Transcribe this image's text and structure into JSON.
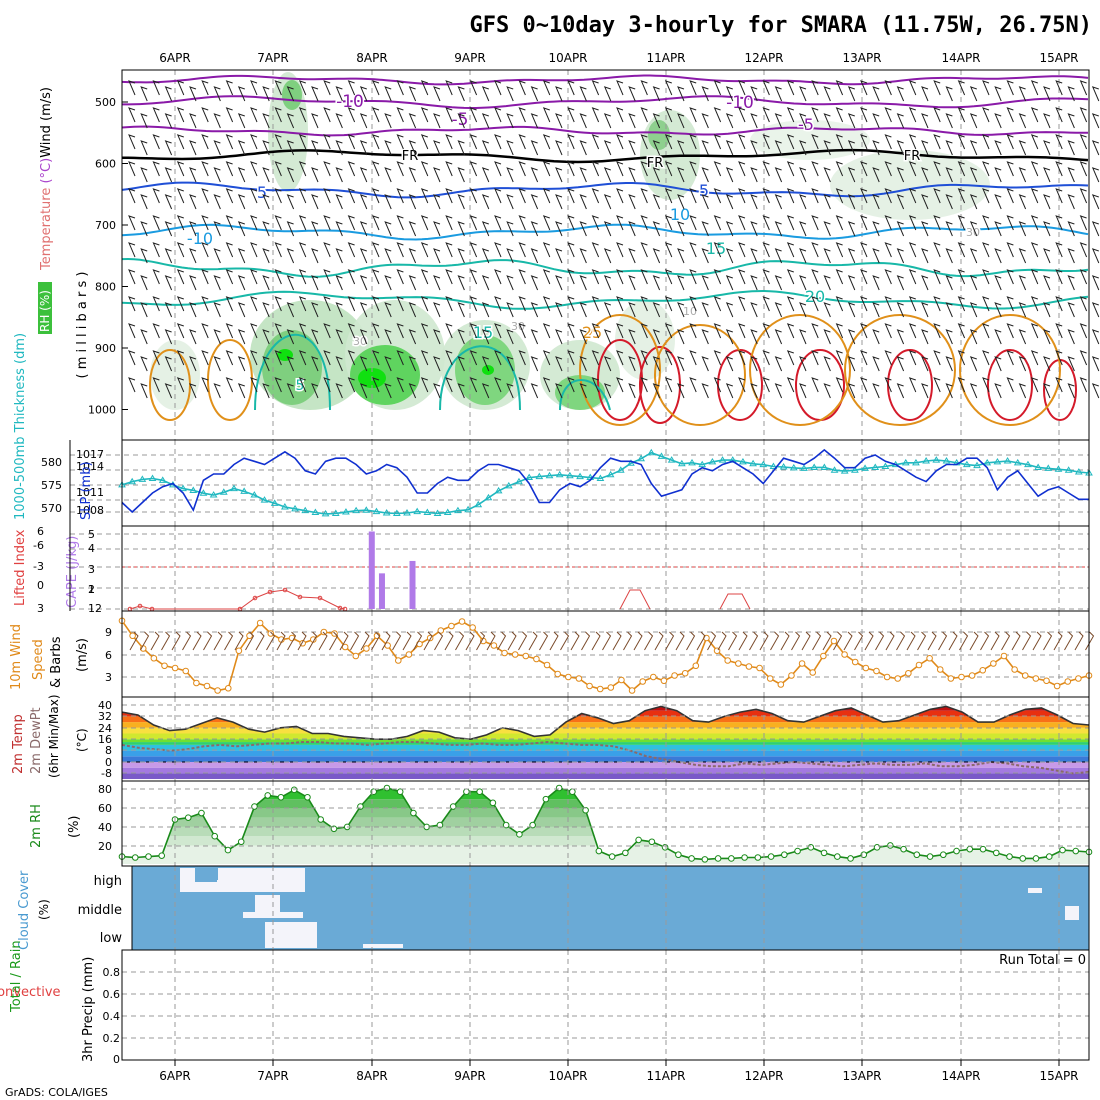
{
  "title": "GFS 0~10day 3-hourly for SMARA (11.75W, 26.75N)",
  "credit": "GrADS: COLA/IGES",
  "dates": [
    "6APR",
    "7APR",
    "8APR",
    "9APR",
    "10APR",
    "11APR",
    "12APR",
    "13APR",
    "14APR",
    "15APR"
  ],
  "panels": {
    "sounding": {
      "ylabel_wind": "Wind (m/s)",
      "ylabel_temp": "Temperature (°C)",
      "ylabel_rh": "RH (%)",
      "ylabel_units": "( m i l l i b a r s )",
      "pressure_levels": [
        500,
        600,
        700,
        800,
        900,
        1000
      ],
      "isotherm_labels": [
        "-10",
        "-5",
        "-10",
        "-5",
        "FR",
        "FR",
        "FR",
        "5",
        "5",
        "-10",
        "10",
        "15",
        "20",
        "25",
        "15",
        "30",
        "30",
        "10",
        "30",
        "5"
      ],
      "colors": {
        "purple": "#8a1aa8",
        "black": "#000000",
        "blue": "#1f4fd6",
        "lightblue": "#1a9be0",
        "teal": "#18b8a8",
        "orange": "#e0901a",
        "red": "#d41a2a",
        "green": "#2ec42e"
      }
    },
    "slp": {
      "ylabel_left": "1000-500mb Thickness (dm)",
      "ylabel_right": "SLP (mb)",
      "left_ticks": [
        "580",
        "575",
        "570"
      ],
      "right_ticks": [
        "1017",
        "1014",
        "1011",
        "1008"
      ],
      "series": [
        {
          "name": "SLP (mb)",
          "color": "#1030d0",
          "values": [
            1009.5,
            1008.0,
            1009.5,
            1011.0,
            1012.0,
            1012.5,
            1011.0,
            1008.3,
            1013.0,
            1014.0,
            1014.0,
            1015.5,
            1016.5,
            1016.0,
            1015.5,
            1016.5,
            1017.5,
            1016.5,
            1014.5,
            1014.0,
            1016.0,
            1016.5,
            1016.5,
            1015.5,
            1014.0,
            1014.5,
            1015.5,
            1015.0,
            1013.5,
            1011.0,
            1011.0,
            1012.5,
            1013.5,
            1013.0,
            1013.0,
            1014.5,
            1015.5,
            1015.5,
            1015.0,
            1014.5,
            1012.5,
            1009.5,
            1009.5,
            1011.5,
            1012.5,
            1012.0,
            1013.0,
            1015.0,
            1016.5,
            1016.0,
            1016.0,
            1015.5,
            1012.5,
            1010.5,
            1011.0,
            1011.5,
            1014.0,
            1015.0,
            1014.5,
            1015.5,
            1016.0,
            1015.0,
            1014.0,
            1012.5,
            1014.5,
            1016.5,
            1016.0,
            1015.5,
            1016.5,
            1017.8,
            1016.5,
            1015.0,
            1015.0,
            1016.5,
            1017.0,
            1016.0,
            1015.5,
            1014.5,
            1013.5,
            1012.8,
            1014.5,
            1015.5,
            1015.5,
            1016.5,
            1016.5,
            1015.0,
            1011.5,
            1013.5,
            1014.5,
            1012.5,
            1010.5,
            1011.5,
            1012.0,
            1011.0,
            1010.0,
            1010.0
          ]
        },
        {
          "name": "Thickness (dm)",
          "color": "#20b8c0",
          "values": [
            574.8,
            575.5,
            576.0,
            576.2,
            575.8,
            574.8,
            574.0,
            573.6,
            573.0,
            572.6,
            573.2,
            574.0,
            573.4,
            572.6,
            571.5,
            570.8,
            570.0,
            569.6,
            569.2,
            568.8,
            568.5,
            568.6,
            568.9,
            569.2,
            569.3,
            569.0,
            568.7,
            568.6,
            568.7,
            569.0,
            568.8,
            568.6,
            568.8,
            569.2,
            569.4,
            570.5,
            572.0,
            573.5,
            574.6,
            575.5,
            576.4,
            576.6,
            576.8,
            577.0,
            576.8,
            576.6,
            576.4,
            576.2,
            577.0,
            578.0,
            579.5,
            580.5,
            581.8,
            581.0,
            580.2,
            579.4,
            579.6,
            579.2,
            579.8,
            580.2,
            580.2,
            579.8,
            579.4,
            579.2,
            578.8,
            578.7,
            578.5,
            578.4,
            578.6,
            578.6,
            578.0,
            577.8,
            578.0,
            578.4,
            578.6,
            578.8,
            579.2,
            579.6,
            579.6,
            580.0,
            580.2,
            580.0,
            579.6,
            579.2,
            579.0,
            579.6,
            579.8,
            580.0,
            579.6,
            579.2,
            578.6,
            578.4,
            578.2,
            578.0,
            577.6,
            577.4
          ]
        }
      ]
    },
    "cape": {
      "ylabel_left": "Lifted Index",
      "ylabel_right": "CAPE (J/kg)",
      "left_ticks": [
        "-6",
        "-3",
        "0",
        "3",
        "6"
      ],
      "right_ticks": [
        "5",
        "4",
        "3",
        "2",
        "1",
        "12"
      ],
      "cape_bars": [
        {
          "date_index": 10,
          "value": 5.0
        },
        {
          "date_index": 11,
          "value": 2.3
        },
        {
          "date_index": 14,
          "value": 3.1
        }
      ],
      "lifted_index_note": "Lifted Index"
    },
    "wind": {
      "ylabel": "10m Wind Speed & Barbs (m/s)",
      "ticks": [
        "9",
        "6",
        "3"
      ],
      "series": {
        "name": "10m Wind Speed (m/s)",
        "color": "#e08a1a",
        "values": [
          10.5,
          8.5,
          6.8,
          5.5,
          4.5,
          4.2,
          3.8,
          2.2,
          1.8,
          1.2,
          1.5,
          6.5,
          8.5,
          10.2,
          8.8,
          8.0,
          8.2,
          7.5,
          8.0,
          9.0,
          8.8,
          7.0,
          5.8,
          6.8,
          8.5,
          7.2,
          5.2,
          6.0,
          7.4,
          8.2,
          9.2,
          9.8,
          10.4,
          9.6,
          7.8,
          7.2,
          6.2,
          6.0,
          5.8,
          5.4,
          4.6,
          3.4,
          3.0,
          2.8,
          1.8,
          1.4,
          1.6,
          2.6,
          1.2,
          2.4,
          3.0,
          2.5,
          3.2,
          3.5,
          4.5,
          8.2,
          6.5,
          5.2,
          4.8,
          4.4,
          4.2,
          2.8,
          2.0,
          3.2,
          4.8,
          3.6,
          5.8,
          7.8,
          6.0,
          5.0,
          4.2,
          3.8,
          3.0,
          2.8,
          3.5,
          4.6,
          5.5,
          4.0,
          2.8,
          3.0,
          3.2,
          3.9,
          4.8,
          5.8,
          4.0,
          3.2,
          2.8,
          2.5,
          1.8,
          2.4,
          2.8,
          3.2
        ]
      }
    },
    "temp": {
      "ylabel": "2m Temp 2m DewPt (6hr Min/Max) (°C)",
      "ticks": [
        "40",
        "32",
        "24",
        "16",
        "8",
        "0",
        "-8"
      ],
      "temp_values": [
        35,
        33,
        26,
        22,
        23,
        27,
        31,
        28,
        23,
        21,
        24,
        25,
        20,
        20,
        18,
        17,
        16,
        16,
        18,
        22,
        21,
        17,
        16,
        19,
        24,
        22,
        18,
        19,
        28,
        34,
        31,
        27,
        29,
        36,
        39,
        36,
        29,
        28,
        32,
        35,
        37,
        34,
        29,
        28,
        32,
        36,
        38,
        33,
        28,
        29,
        33,
        37,
        39,
        35,
        28,
        28,
        33,
        37,
        38,
        33,
        27,
        26
      ],
      "dew_values": [
        12,
        10,
        9,
        8,
        9,
        11,
        12,
        11,
        12,
        13,
        13,
        14,
        14,
        13,
        13,
        12,
        13,
        14,
        14,
        13,
        12,
        12,
        13,
        12,
        12,
        13,
        14,
        13,
        12,
        12,
        11,
        8,
        4,
        2,
        0,
        -2,
        -3,
        -3,
        -1,
        -2,
        -1,
        0,
        -1,
        -2,
        -3,
        -2,
        -1,
        -2,
        -2,
        -1,
        -3,
        -3,
        -2,
        0,
        -1,
        -3,
        -4,
        -6,
        -8,
        -7
      ]
    },
    "rh": {
      "ylabel_left": "2m RH",
      "ylabel_unit": "(%)",
      "ticks": [
        "80",
        "60",
        "40",
        "20"
      ],
      "series": {
        "name": "2m RH (%)",
        "color": "#1a8a1a",
        "values": [
          8,
          7,
          8,
          9,
          48,
          50,
          55,
          30,
          15,
          24,
          62,
          74,
          72,
          80,
          72,
          48,
          38,
          40,
          62,
          78,
          82,
          78,
          55,
          40,
          42,
          62,
          78,
          78,
          66,
          42,
          32,
          42,
          70,
          82,
          78,
          58,
          14,
          8,
          12,
          26,
          24,
          18,
          10,
          6,
          5,
          6,
          6,
          7,
          7,
          8,
          10,
          14,
          18,
          12,
          8,
          6,
          10,
          18,
          20,
          16,
          10,
          8,
          10,
          14,
          16,
          16,
          12,
          8,
          6,
          6,
          8,
          15,
          14,
          13
        ]
      }
    },
    "cloud": {
      "ylabel": "Cloud Cover",
      "ylabel_unit": "(%)",
      "rows": [
        "high",
        "middle",
        "low"
      ],
      "bg": "#6aaad6"
    },
    "precip": {
      "ylabel_left": "Total / Rain",
      "ylabel_left2": "Convective",
      "ylabel_right": "3hr Precip (mm)",
      "ticks": [
        "0.8",
        "0.6",
        "0.4",
        "0.2",
        "0"
      ],
      "run_total": "Run Total = 0"
    }
  }
}
